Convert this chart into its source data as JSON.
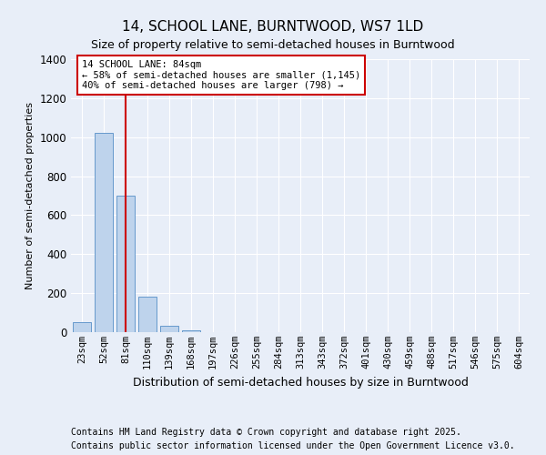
{
  "title1": "14, SCHOOL LANE, BURNTWOOD, WS7 1LD",
  "title2": "Size of property relative to semi-detached houses in Burntwood",
  "xlabel": "Distribution of semi-detached houses by size in Burntwood",
  "ylabel": "Number of semi-detached properties",
  "categories": [
    "23sqm",
    "52sqm",
    "81sqm",
    "110sqm",
    "139sqm",
    "168sqm",
    "197sqm",
    "226sqm",
    "255sqm",
    "284sqm",
    "313sqm",
    "343sqm",
    "372sqm",
    "401sqm",
    "430sqm",
    "459sqm",
    "488sqm",
    "517sqm",
    "546sqm",
    "575sqm",
    "604sqm"
  ],
  "values": [
    50,
    1020,
    700,
    180,
    35,
    8,
    2,
    0,
    0,
    0,
    0,
    0,
    0,
    0,
    0,
    0,
    0,
    0,
    0,
    0,
    0
  ],
  "bar_color": "#bed3ec",
  "bar_edge_color": "#6699cc",
  "property_line_x": 2,
  "property_line_color": "#cc0000",
  "annotation_text": "14 SCHOOL LANE: 84sqm\n← 58% of semi-detached houses are smaller (1,145)\n40% of semi-detached houses are larger (798) →",
  "annotation_box_facecolor": "#ffffff",
  "annotation_box_edgecolor": "#cc0000",
  "ylim": [
    0,
    1400
  ],
  "yticks": [
    0,
    200,
    400,
    600,
    800,
    1000,
    1200,
    1400
  ],
  "background_color": "#e8eef8",
  "grid_color": "#ffffff",
  "footer1": "Contains HM Land Registry data © Crown copyright and database right 2025.",
  "footer2": "Contains public sector information licensed under the Open Government Licence v3.0."
}
